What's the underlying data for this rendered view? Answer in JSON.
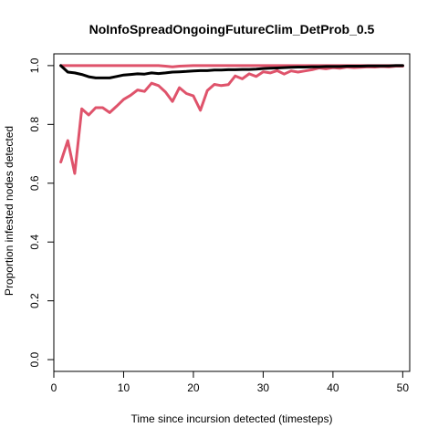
{
  "chart_data": {
    "type": "line",
    "title": "NoInfoSpreadOngoingFutureClim_DetProb_0.5",
    "xlabel": "Time since incursion detected (timesteps)",
    "ylabel": "Proportion infested nodes detected",
    "xlim": [
      0,
      51
    ],
    "ylim": [
      -0.04,
      1.04
    ],
    "xticks": [
      0,
      10,
      20,
      30,
      40,
      50
    ],
    "yticks": [
      0.0,
      0.2,
      0.4,
      0.6,
      0.8,
      1.0
    ],
    "xtick_labels": [
      "0",
      "10",
      "20",
      "30",
      "40",
      "50"
    ],
    "ytick_labels": [
      "0.0",
      "0.2",
      "0.4",
      "0.6",
      "0.8",
      "1.0"
    ],
    "grid": false,
    "legend": "none",
    "series": [
      {
        "color": "#DF536B",
        "x": [
          1,
          2,
          3,
          4,
          5,
          6,
          7,
          8,
          9,
          10,
          11,
          12,
          13,
          14,
          15,
          16,
          17,
          18,
          19,
          20,
          21,
          22,
          23,
          24,
          25,
          26,
          27,
          28,
          29,
          30,
          31,
          32,
          33,
          34,
          35,
          36,
          37,
          38,
          39,
          40,
          41,
          42,
          43,
          44,
          45,
          46,
          47,
          48,
          49,
          50
        ],
        "y": [
          0.672,
          0.745,
          0.633,
          0.853,
          0.832,
          0.857,
          0.857,
          0.84,
          0.862,
          0.885,
          0.899,
          0.917,
          0.912,
          0.94,
          0.932,
          0.91,
          0.878,
          0.925,
          0.905,
          0.897,
          0.848,
          0.915,
          0.936,
          0.932,
          0.935,
          0.965,
          0.955,
          0.972,
          0.963,
          0.979,
          0.975,
          0.983,
          0.971,
          0.982,
          0.978,
          0.982,
          0.986,
          0.992,
          0.989,
          0.993,
          0.991,
          0.995,
          0.993,
          0.994,
          0.996,
          0.995,
          0.997,
          0.996,
          0.998,
          0.998
        ]
      },
      {
        "color": "#DF536B",
        "x": [
          1,
          5,
          10,
          15,
          16,
          17,
          18,
          20,
          25,
          30,
          35,
          40,
          45,
          50
        ],
        "y": [
          1.0,
          1.0,
          1.0,
          1.0,
          0.998,
          0.996,
          0.998,
          1.0,
          1.0,
          1.0,
          1.0,
          1.0,
          1.0,
          1.0
        ]
      },
      {
        "color": "#000000",
        "x": [
          1,
          2,
          3,
          4,
          5,
          6,
          7,
          8,
          9,
          10,
          11,
          12,
          13,
          14,
          15,
          16,
          17,
          18,
          19,
          20,
          21,
          22,
          23,
          24,
          25,
          26,
          27,
          28,
          29,
          30,
          31,
          32,
          33,
          34,
          35,
          36,
          37,
          38,
          39,
          40,
          41,
          42,
          43,
          44,
          45,
          46,
          47,
          48,
          49,
          50
        ],
        "y": [
          1.0,
          0.978,
          0.975,
          0.97,
          0.962,
          0.958,
          0.958,
          0.958,
          0.963,
          0.968,
          0.97,
          0.972,
          0.971,
          0.975,
          0.973,
          0.975,
          0.978,
          0.979,
          0.98,
          0.982,
          0.983,
          0.983,
          0.985,
          0.985,
          0.986,
          0.986,
          0.987,
          0.987,
          0.988,
          0.99,
          0.991,
          0.992,
          0.993,
          0.994,
          0.995,
          0.995,
          0.996,
          0.996,
          0.997,
          0.997,
          0.997,
          0.998,
          0.998,
          0.998,
          0.999,
          0.999,
          0.999,
          0.999,
          1.0,
          1.0
        ]
      }
    ]
  }
}
